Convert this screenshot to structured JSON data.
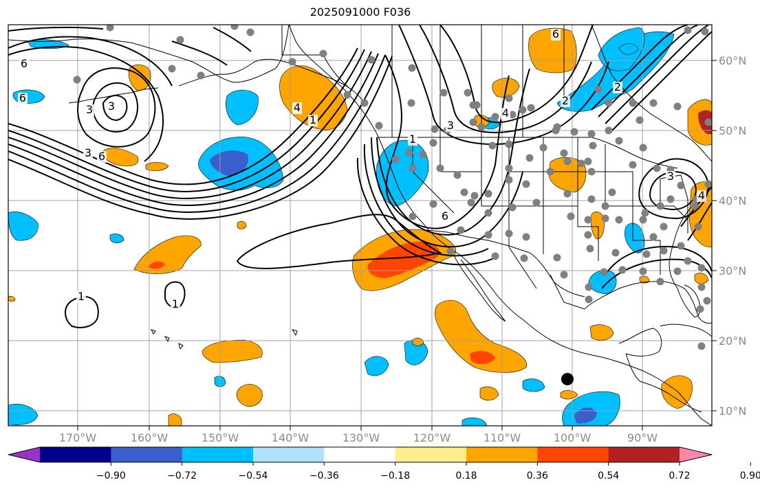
{
  "title": "2025091000 F036",
  "map": {
    "grid_on": true,
    "lon_labels": [
      "170°W",
      "160°W",
      "150°W",
      "140°W",
      "130°W",
      "120°W",
      "110°W",
      "100°W",
      "90°W"
    ],
    "lat_labels": [
      "60°N",
      "50°N",
      "40°N",
      "30°N",
      "20°N",
      "10°N"
    ]
  },
  "colorbar": {
    "ticks": [
      "−0.90",
      "−0.72",
      "−0.54",
      "−0.36",
      "−0.18",
      "0.18",
      "0.36",
      "0.54",
      "0.72",
      "0.90"
    ],
    "colors": [
      "#9932cc",
      "#00008b",
      "#3a5fcd",
      "#00bfff",
      "#b0e2ff",
      "#ffffff",
      "#ffec8b",
      "#ffa500",
      "#ff4500",
      "#b22222",
      "#ff88aa"
    ]
  },
  "contour_labels": [
    "6",
    "6",
    "3",
    "3",
    "3",
    "6",
    "1",
    "1",
    "4",
    "3",
    "6",
    "4",
    "2",
    "2",
    "6",
    "3",
    "4",
    "1",
    "1"
  ],
  "fill_colors": {
    "blue": "#00bfff",
    "dark_blue": "#3a5fcd",
    "orange": "#ffa500",
    "red": "#ff4500",
    "dark_red": "#b22222"
  },
  "marker_color": "#808080"
}
